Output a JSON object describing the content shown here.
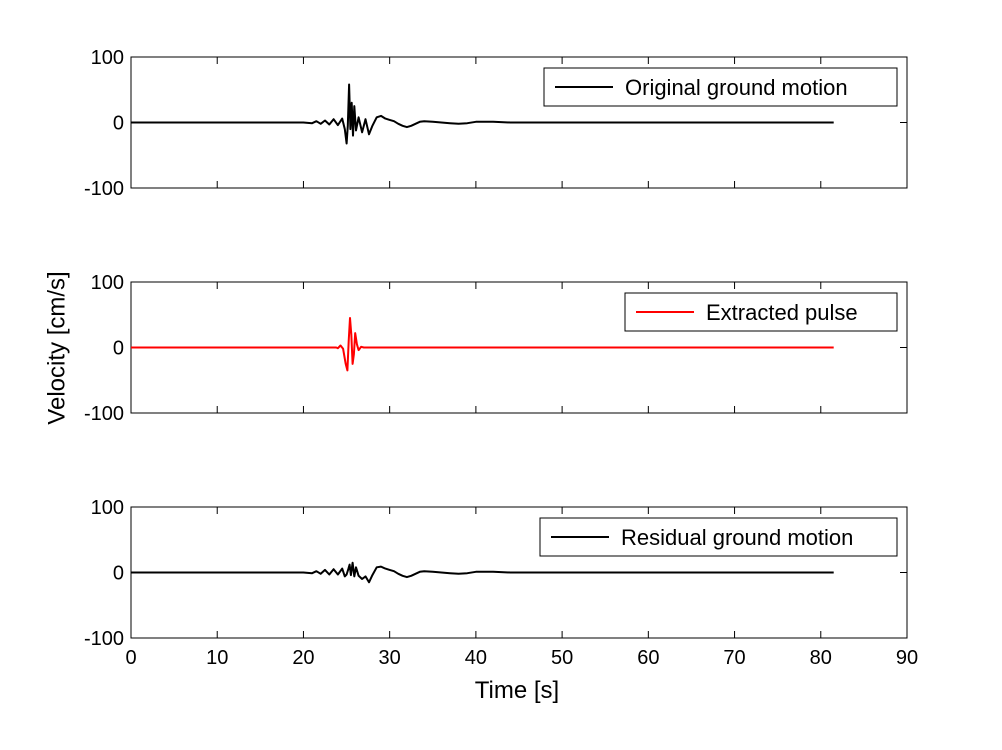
{
  "chart_data": {
    "type": "line",
    "xlabel": "Time [s]",
    "ylabel": "Velocity [cm/s]",
    "xlim": [
      0,
      90
    ],
    "ylim": [
      -100,
      100
    ],
    "x_ticks": [
      "0",
      "10",
      "20",
      "30",
      "40",
      "50",
      "60",
      "70",
      "80",
      "90"
    ],
    "y_ticks": [
      "100",
      "0",
      "-100"
    ],
    "grid": false,
    "legend_position": "top-right",
    "subplots": [
      {
        "name": "Original ground motion",
        "color": "#000000",
        "points": [
          [
            0,
            0
          ],
          [
            20,
            0
          ],
          [
            21,
            -1
          ],
          [
            21.5,
            2
          ],
          [
            22,
            -2
          ],
          [
            22.5,
            3
          ],
          [
            23,
            -3
          ],
          [
            23.5,
            5
          ],
          [
            24,
            -4
          ],
          [
            24.5,
            6
          ],
          [
            24.8,
            -10
          ],
          [
            25.0,
            -32
          ],
          [
            25.15,
            -5
          ],
          [
            25.3,
            58
          ],
          [
            25.45,
            -10
          ],
          [
            25.6,
            30
          ],
          [
            25.75,
            -20
          ],
          [
            25.9,
            25
          ],
          [
            26.1,
            -12
          ],
          [
            26.4,
            8
          ],
          [
            26.8,
            -15
          ],
          [
            27.2,
            5
          ],
          [
            27.6,
            -18
          ],
          [
            28,
            -5
          ],
          [
            28.5,
            8
          ],
          [
            29,
            10
          ],
          [
            29.5,
            6
          ],
          [
            30,
            4
          ],
          [
            30.5,
            2
          ],
          [
            31,
            -2
          ],
          [
            31.5,
            -5
          ],
          [
            32,
            -7
          ],
          [
            32.5,
            -5
          ],
          [
            33,
            -2
          ],
          [
            33.5,
            1
          ],
          [
            34,
            2
          ],
          [
            35,
            1
          ],
          [
            36,
            0
          ],
          [
            37,
            -1
          ],
          [
            38,
            -2
          ],
          [
            39,
            -1
          ],
          [
            40,
            1
          ],
          [
            42,
            1
          ],
          [
            44,
            0
          ],
          [
            46,
            0
          ],
          [
            50,
            0
          ],
          [
            60,
            0
          ],
          [
            70,
            0
          ],
          [
            80,
            0
          ],
          [
            81.5,
            0
          ]
        ]
      },
      {
        "name": "Extracted pulse",
        "color": "#ff0000",
        "points": [
          [
            0,
            0
          ],
          [
            23.8,
            0
          ],
          [
            24.0,
            -1
          ],
          [
            24.3,
            3
          ],
          [
            24.6,
            -2
          ],
          [
            24.9,
            -25
          ],
          [
            25.1,
            -35
          ],
          [
            25.25,
            10
          ],
          [
            25.4,
            45
          ],
          [
            25.55,
            20
          ],
          [
            25.7,
            -25
          ],
          [
            25.85,
            -10
          ],
          [
            26.0,
            22
          ],
          [
            26.2,
            5
          ],
          [
            26.4,
            -4
          ],
          [
            26.7,
            1
          ],
          [
            27.0,
            0
          ],
          [
            40,
            0
          ],
          [
            81.5,
            0
          ]
        ]
      },
      {
        "name": "Residual ground motion",
        "color": "#000000",
        "points": [
          [
            0,
            0
          ],
          [
            20,
            0
          ],
          [
            21,
            -1
          ],
          [
            21.5,
            2
          ],
          [
            22,
            -2
          ],
          [
            22.5,
            4
          ],
          [
            23,
            -3
          ],
          [
            23.5,
            5
          ],
          [
            24,
            -3
          ],
          [
            24.5,
            6
          ],
          [
            24.8,
            -6
          ],
          [
            25.0,
            -3
          ],
          [
            25.2,
            5
          ],
          [
            25.35,
            12
          ],
          [
            25.5,
            -4
          ],
          [
            25.7,
            15
          ],
          [
            25.9,
            -6
          ],
          [
            26.1,
            8
          ],
          [
            26.4,
            -5
          ],
          [
            26.8,
            -10
          ],
          [
            27.2,
            -6
          ],
          [
            27.6,
            -15
          ],
          [
            28,
            -4
          ],
          [
            28.5,
            8
          ],
          [
            29,
            9
          ],
          [
            29.5,
            6
          ],
          [
            30,
            4
          ],
          [
            30.5,
            2
          ],
          [
            31,
            -2
          ],
          [
            31.5,
            -5
          ],
          [
            32,
            -7
          ],
          [
            32.5,
            -5
          ],
          [
            33,
            -2
          ],
          [
            33.5,
            1
          ],
          [
            34,
            2
          ],
          [
            35,
            1
          ],
          [
            36,
            0
          ],
          [
            37,
            -1
          ],
          [
            38,
            -2
          ],
          [
            39,
            -1
          ],
          [
            40,
            1
          ],
          [
            42,
            1
          ],
          [
            44,
            0
          ],
          [
            46,
            0
          ],
          [
            50,
            0
          ],
          [
            60,
            0
          ],
          [
            70,
            0
          ],
          [
            80,
            0
          ],
          [
            81.5,
            0
          ]
        ]
      }
    ]
  }
}
